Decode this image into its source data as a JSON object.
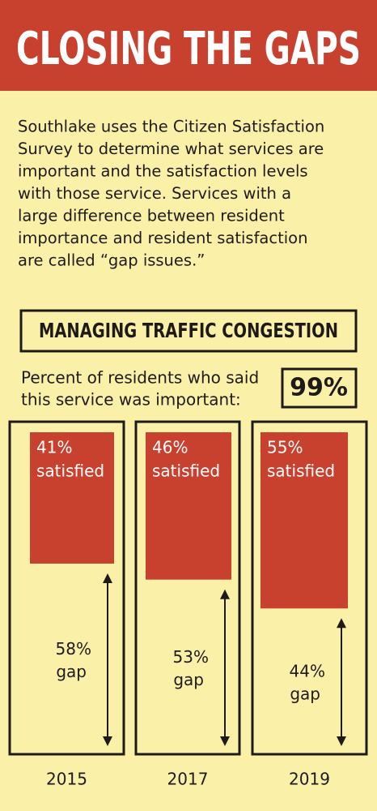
{
  "header": {
    "title": "CLOSING THE GAPS"
  },
  "intro": [
    "Southlake uses the Citizen Satisfaction",
    "Survey to determine what services are",
    "important and the satisfaction levels",
    "with those service. Services with a",
    "large difference between resident",
    "importance and resident satisfaction",
    "are called “gap issues.”"
  ],
  "chart_data": {
    "type": "bar",
    "title": "MANAGING TRAFFIC CONGESTION",
    "importance_text": [
      "Percent of residents who said",
      "this service was important:"
    ],
    "importance": 99,
    "importance_label": "99%",
    "categories": [
      "2015",
      "2017",
      "2019"
    ],
    "ylim": [
      0,
      100
    ],
    "series": [
      {
        "name": "satisfied",
        "color": "#c8412f",
        "values": [
          41,
          46,
          55
        ],
        "value_labels": [
          "41%",
          "46%",
          "55%"
        ]
      },
      {
        "name": "gap",
        "color": "#1e1a17",
        "values": [
          58,
          53,
          44
        ],
        "value_labels": [
          "58%",
          "53%",
          "44%"
        ]
      }
    ]
  }
}
